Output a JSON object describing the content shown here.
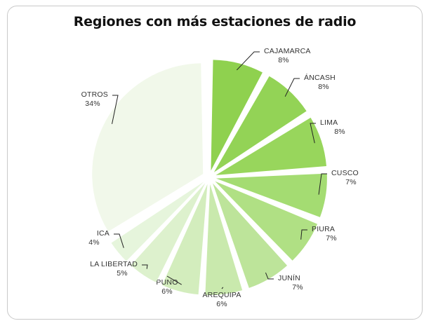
{
  "chart_data": {
    "type": "pie",
    "title": "Regiones con más estaciones de radio",
    "slices": [
      {
        "label": "CAJAMARCA",
        "value": 8,
        "value_label": "8%",
        "color": "#8fd14f"
      },
      {
        "label": "ÁNCASH",
        "value": 8,
        "value_label": "8%",
        "color": "#93d356"
      },
      {
        "label": "LIMA",
        "value": 8,
        "value_label": "8%",
        "color": "#98d65c"
      },
      {
        "label": "CUSCO",
        "value": 7,
        "value_label": "7%",
        "color": "#a4dc72"
      },
      {
        "label": "PIURA",
        "value": 7,
        "value_label": "7%",
        "color": "#b0e084"
      },
      {
        "label": "JUNÍN",
        "value": 7,
        "value_label": "7%",
        "color": "#bde49a"
      },
      {
        "label": "AREQUIPA",
        "value": 6,
        "value_label": "6%",
        "color": "#c9e9ad"
      },
      {
        "label": "PUNO",
        "value": 6,
        "value_label": "6%",
        "color": "#d3edbd"
      },
      {
        "label": "LA LIBERTAD",
        "value": 5,
        "value_label": "5%",
        "color": "#ddf1cd"
      },
      {
        "label": "ICA",
        "value": 4,
        "value_label": "4%",
        "color": "#e6f5dc"
      },
      {
        "label": "OTROS",
        "value": 34,
        "value_label": "34%",
        "color": "#f1f8ea"
      }
    ]
  }
}
